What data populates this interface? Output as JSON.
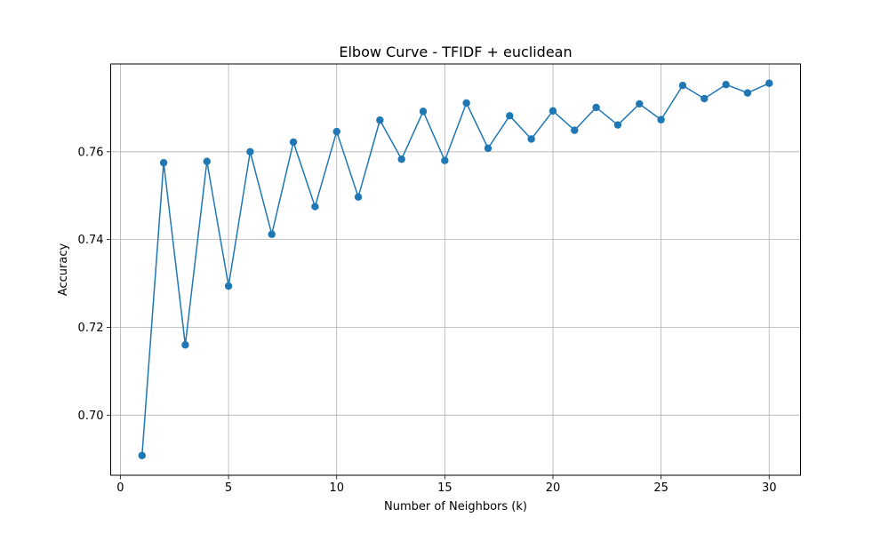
{
  "chart_data": {
    "type": "line",
    "title": "Elbow Curve - TFIDF + euclidean",
    "xlabel": "Number of Neighbors (k)",
    "ylabel": "Accuracy",
    "xlim": [
      -0.45,
      31.45
    ],
    "ylim": [
      0.6863,
      0.78
    ],
    "xticks": [
      0,
      5,
      10,
      15,
      20,
      25,
      30
    ],
    "xtick_labels": [
      "0",
      "5",
      "10",
      "15",
      "20",
      "25",
      "30"
    ],
    "yticks": [
      0.7,
      0.72,
      0.74,
      0.76
    ],
    "ytick_labels": [
      "0.70",
      "0.72",
      "0.74",
      "0.76"
    ],
    "grid": true,
    "marker": "circle",
    "color": "#1f77b4",
    "series": [
      {
        "x": [
          1,
          2,
          3,
          4,
          5,
          6,
          7,
          8,
          9,
          10,
          11,
          12,
          13,
          14,
          15,
          16,
          17,
          18,
          19,
          20,
          21,
          22,
          23,
          24,
          25,
          26,
          27,
          28,
          29,
          30
        ],
        "values": [
          0.6908,
          0.7575,
          0.716,
          0.7578,
          0.7294,
          0.76,
          0.7412,
          0.7622,
          0.7475,
          0.7646,
          0.7497,
          0.7672,
          0.7583,
          0.7692,
          0.758,
          0.7711,
          0.7608,
          0.7682,
          0.7629,
          0.7693,
          0.7649,
          0.7701,
          0.7661,
          0.7709,
          0.7673,
          0.7751,
          0.7721,
          0.7753,
          0.7734,
          0.7756
        ]
      }
    ]
  }
}
